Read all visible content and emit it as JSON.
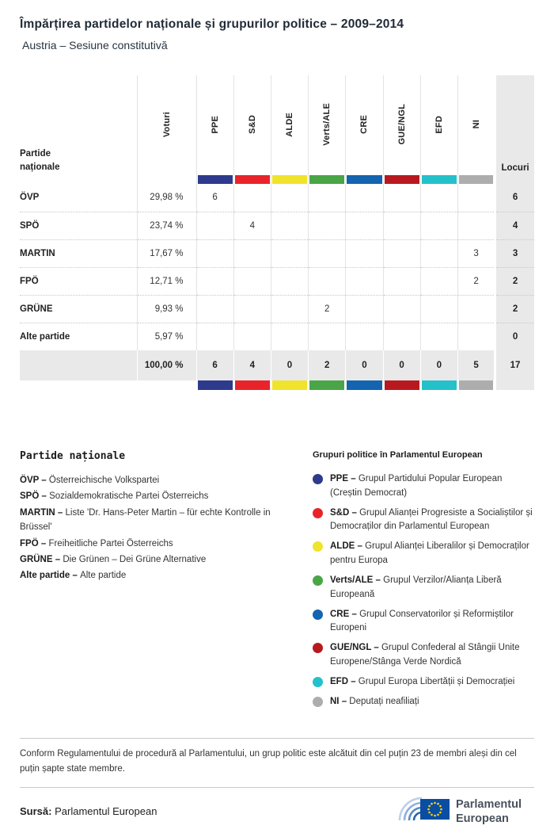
{
  "page": {
    "title": "Împărțirea partidelor naționale și grupurilor politice – 2009–2014",
    "subtitle": "Austria – Sesiune constitutivă"
  },
  "chart_data": {
    "type": "table",
    "title": "Împărțirea partidelor naționale și grupurilor politice – 2009–2014",
    "subtitle": "Austria – Sesiune constitutivă",
    "corner_label": "Partide naționale",
    "votes_label": "Voturi",
    "seats_label": "Locuri",
    "groups": [
      {
        "label": "PPE",
        "color": "#2e3a8c"
      },
      {
        "label": "S&D",
        "color": "#e8242a"
      },
      {
        "label": "ALDE",
        "color": "#f0e32c"
      },
      {
        "label": "Verts/ALE",
        "color": "#4aa547"
      },
      {
        "label": "CRE",
        "color": "#1464af"
      },
      {
        "label": "GUE/NGL",
        "color": "#b8191f"
      },
      {
        "label": "EFD",
        "color": "#25c1ca"
      },
      {
        "label": "NI",
        "color": "#adadad"
      }
    ],
    "rows": [
      {
        "party": "ÖVP",
        "votes": "29,98 %",
        "cells": [
          "6",
          "",
          "",
          "",
          "",
          "",
          "",
          ""
        ],
        "seats": "6"
      },
      {
        "party": "SPÖ",
        "votes": "23,74 %",
        "cells": [
          "",
          "4",
          "",
          "",
          "",
          "",
          "",
          ""
        ],
        "seats": "4"
      },
      {
        "party": "MARTIN",
        "votes": "17,67 %",
        "cells": [
          "",
          "",
          "",
          "",
          "",
          "",
          "",
          "3"
        ],
        "seats": "3"
      },
      {
        "party": "FPÖ",
        "votes": "12,71 %",
        "cells": [
          "",
          "",
          "",
          "",
          "",
          "",
          "",
          "2"
        ],
        "seats": "2"
      },
      {
        "party": "GRÜNE",
        "votes": "9,93 %",
        "cells": [
          "",
          "",
          "",
          "2",
          "",
          "",
          "",
          ""
        ],
        "seats": "2"
      },
      {
        "party": "Alte partide",
        "votes": "5,97 %",
        "cells": [
          "",
          "",
          "",
          "",
          "",
          "",
          "",
          ""
        ],
        "seats": "0"
      }
    ],
    "total": {
      "votes": "100,00 %",
      "cells": [
        "6",
        "4",
        "0",
        "2",
        "0",
        "0",
        "0",
        "5"
      ],
      "seats": "17"
    }
  },
  "legend_parties": {
    "heading": "Partide naționale",
    "items": [
      {
        "abbr": "ÖVP –",
        "name": "Österreichische Volkspartei"
      },
      {
        "abbr": "SPÖ –",
        "name": "Sozialdemokratische Partei Österreichs"
      },
      {
        "abbr": "MARTIN –",
        "name": "Liste 'Dr. Hans-Peter Martin – für echte Kontrolle in Brüssel'"
      },
      {
        "abbr": "FPÖ –",
        "name": "Freiheitliche Partei Österreichs"
      },
      {
        "abbr": "GRÜNE –",
        "name": "Die Grünen – Dei Grüne Alternative"
      },
      {
        "abbr": "Alte partide –",
        "name": "Alte partide"
      }
    ]
  },
  "legend_groups": {
    "heading": "Grupuri politice în Parlamentul European",
    "items": [
      {
        "abbr": "PPE –",
        "name": "Grupul Partidului Popular European (Creștin Democrat)",
        "color": "#2e3a8c"
      },
      {
        "abbr": "S&D –",
        "name": "Grupul Alianței Progresiste a Socialiștilor și Democraților din Parlamentul European",
        "color": "#e8242a"
      },
      {
        "abbr": "ALDE –",
        "name": "Grupul Alianței Liberalilor și Democraților pentru Europa",
        "color": "#f0e32c"
      },
      {
        "abbr": "Verts/ALE –",
        "name": "Grupul Verzilor/Alianța Liberă Europeană",
        "color": "#4aa547"
      },
      {
        "abbr": "CRE –",
        "name": "Grupul Conservatorilor și Reformiștilor Europeni",
        "color": "#1464af"
      },
      {
        "abbr": "GUE/NGL –",
        "name": "Grupul Confederal al Stângii Unite Europene/Stânga Verde Nordică",
        "color": "#b8191f"
      },
      {
        "abbr": "EFD –",
        "name": "Grupul Europa Libertății și Democrației",
        "color": "#25c1ca"
      },
      {
        "abbr": "NI –",
        "name": "Deputați neafiliați",
        "color": "#adadad"
      }
    ]
  },
  "footer": {
    "note": "Conform Regulamentului de procedură al Parlamentului, un grup politic este alcătuit din cel puțin 23 de membri aleși din cel puțin șapte state membre.",
    "source_label": "Sursă:",
    "source_text": "Parlamentul European",
    "logo": {
      "line1": "Parlamentul",
      "line2": "European"
    }
  }
}
